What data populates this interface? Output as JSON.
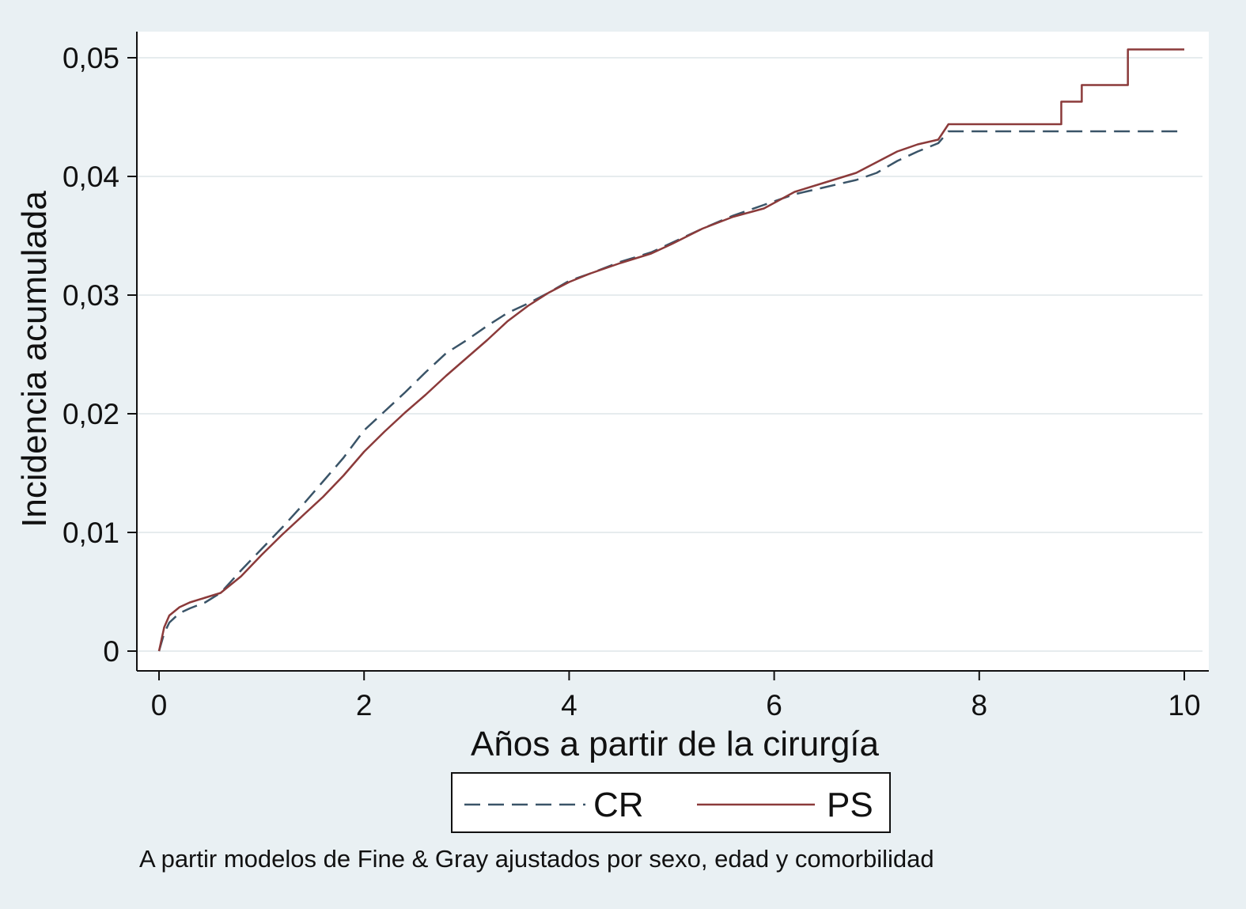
{
  "chart_data": {
    "type": "line",
    "title": "",
    "xlabel": "Años a partir de la cirurgía",
    "ylabel": "Incidencia acumulada",
    "xlim": [
      0,
      10
    ],
    "ylim": [
      0,
      0.05
    ],
    "xticks": [
      {
        "value": 0,
        "label": "0"
      },
      {
        "value": 2,
        "label": "2"
      },
      {
        "value": 4,
        "label": "4"
      },
      {
        "value": 6,
        "label": "6"
      },
      {
        "value": 8,
        "label": "8"
      },
      {
        "value": 10,
        "label": "10"
      }
    ],
    "yticks": [
      {
        "value": 0,
        "label": "0"
      },
      {
        "value": 0.01,
        "label": "0,01"
      },
      {
        "value": 0.02,
        "label": "0,02"
      },
      {
        "value": 0.03,
        "label": "0,03"
      },
      {
        "value": 0.04,
        "label": "0,04"
      },
      {
        "value": 0.05,
        "label": "0,05"
      }
    ],
    "grid": true,
    "legend_position": "bottom",
    "series": [
      {
        "name": "CR",
        "color": "#3a5468",
        "style": "dashed",
        "x": [
          0,
          0.05,
          0.1,
          0.2,
          0.3,
          0.45,
          0.6,
          0.8,
          1.0,
          1.2,
          1.4,
          1.6,
          1.8,
          2.0,
          2.2,
          2.4,
          2.6,
          2.8,
          3.0,
          3.2,
          3.4,
          3.6,
          3.8,
          4.0,
          4.2,
          4.5,
          4.8,
          5.0,
          5.3,
          5.6,
          5.9,
          6.2,
          6.5,
          6.8,
          7.0,
          7.2,
          7.4,
          7.6,
          7.7,
          8.0,
          9.0,
          10.0
        ],
        "y": [
          0,
          0.0015,
          0.0024,
          0.0032,
          0.0036,
          0.0041,
          0.0049,
          0.0068,
          0.0086,
          0.0104,
          0.0123,
          0.0143,
          0.0163,
          0.0186,
          0.0202,
          0.0218,
          0.0235,
          0.0251,
          0.0262,
          0.0274,
          0.0285,
          0.0293,
          0.0302,
          0.0312,
          0.0318,
          0.0328,
          0.0336,
          0.0344,
          0.0356,
          0.0367,
          0.0376,
          0.0385,
          0.0391,
          0.0397,
          0.0403,
          0.0413,
          0.0421,
          0.0428,
          0.0438,
          0.0438,
          0.0438,
          0.0438
        ]
      },
      {
        "name": "PS",
        "color": "#8b3a3a",
        "style": "solid",
        "x": [
          0,
          0.05,
          0.1,
          0.2,
          0.3,
          0.45,
          0.6,
          0.8,
          1.0,
          1.2,
          1.4,
          1.6,
          1.8,
          2.0,
          2.2,
          2.4,
          2.6,
          2.8,
          3.0,
          3.2,
          3.4,
          3.6,
          3.8,
          4.0,
          4.2,
          4.5,
          4.8,
          5.0,
          5.3,
          5.6,
          5.9,
          6.2,
          6.5,
          6.8,
          7.0,
          7.2,
          7.4,
          7.6,
          7.7,
          8.0,
          8.8,
          8.8,
          9.0,
          9.0,
          9.45,
          9.45,
          10.0
        ],
        "y": [
          0,
          0.002,
          0.003,
          0.0037,
          0.0041,
          0.0045,
          0.0049,
          0.0063,
          0.0081,
          0.0098,
          0.0114,
          0.013,
          0.0148,
          0.0168,
          0.0185,
          0.0201,
          0.0216,
          0.0232,
          0.0247,
          0.0262,
          0.0278,
          0.0291,
          0.0302,
          0.0311,
          0.0318,
          0.0327,
          0.0335,
          0.0343,
          0.0356,
          0.0366,
          0.0373,
          0.0387,
          0.0395,
          0.0403,
          0.0412,
          0.0421,
          0.0427,
          0.0431,
          0.0444,
          0.0444,
          0.0444,
          0.0463,
          0.0463,
          0.0477,
          0.0477,
          0.0507,
          0.0507
        ]
      }
    ]
  },
  "legend": {
    "items": [
      {
        "label": "CR",
        "series": "CR"
      },
      {
        "label": "PS",
        "series": "PS"
      }
    ]
  },
  "note": "A partir modelos de Fine & Gray ajustados por sexo, edad y comorbilidad"
}
